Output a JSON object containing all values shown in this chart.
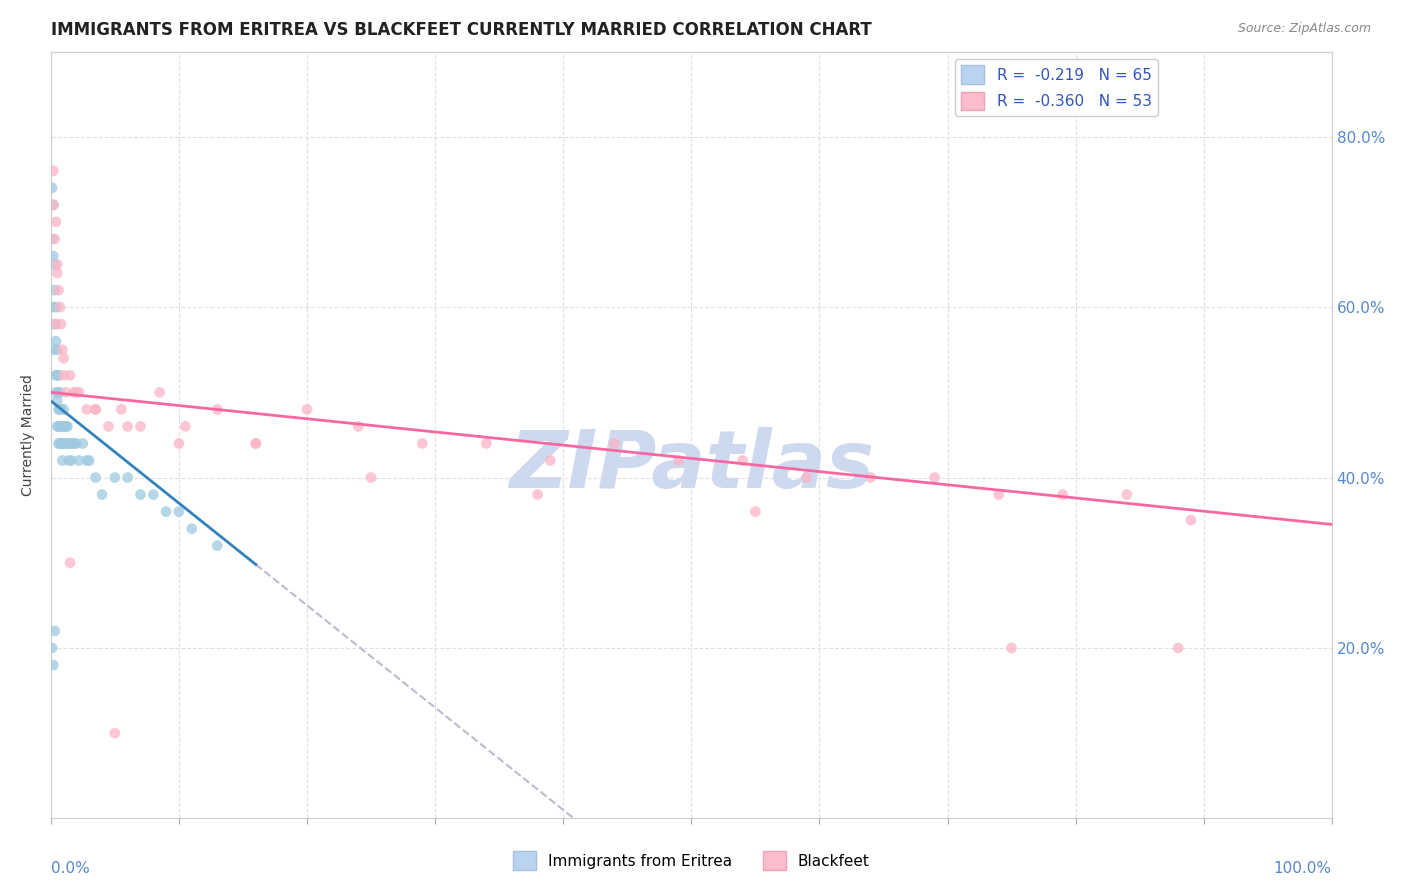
{
  "title": "IMMIGRANTS FROM ERITREA VS BLACKFEET CURRENTLY MARRIED CORRELATION CHART",
  "source": "Source: ZipAtlas.com",
  "ylabel": "Currently Married",
  "ylabel_right_ticks": [
    "20.0%",
    "40.0%",
    "60.0%",
    "80.0%"
  ],
  "ylabel_right_vals": [
    0.2,
    0.4,
    0.6,
    0.8
  ],
  "eritrea_x": [
    0.001,
    0.001,
    0.002,
    0.002,
    0.002,
    0.003,
    0.003,
    0.003,
    0.003,
    0.004,
    0.004,
    0.004,
    0.004,
    0.005,
    0.005,
    0.005,
    0.005,
    0.006,
    0.006,
    0.006,
    0.006,
    0.006,
    0.007,
    0.007,
    0.007,
    0.007,
    0.008,
    0.008,
    0.008,
    0.009,
    0.009,
    0.009,
    0.01,
    0.01,
    0.01,
    0.011,
    0.011,
    0.012,
    0.012,
    0.013,
    0.013,
    0.014,
    0.014,
    0.015,
    0.016,
    0.017,
    0.018,
    0.02,
    0.022,
    0.025,
    0.028,
    0.03,
    0.035,
    0.04,
    0.05,
    0.06,
    0.07,
    0.08,
    0.09,
    0.1,
    0.11,
    0.13,
    0.001,
    0.002,
    0.003
  ],
  "eritrea_y": [
    0.74,
    0.68,
    0.72,
    0.66,
    0.6,
    0.65,
    0.62,
    0.58,
    0.55,
    0.6,
    0.56,
    0.52,
    0.5,
    0.55,
    0.52,
    0.49,
    0.46,
    0.52,
    0.5,
    0.48,
    0.46,
    0.44,
    0.5,
    0.48,
    0.46,
    0.44,
    0.48,
    0.46,
    0.44,
    0.46,
    0.44,
    0.42,
    0.48,
    0.46,
    0.44,
    0.46,
    0.44,
    0.46,
    0.44,
    0.46,
    0.44,
    0.44,
    0.42,
    0.44,
    0.42,
    0.44,
    0.44,
    0.44,
    0.42,
    0.44,
    0.42,
    0.42,
    0.4,
    0.38,
    0.4,
    0.4,
    0.38,
    0.38,
    0.36,
    0.36,
    0.34,
    0.32,
    0.2,
    0.18,
    0.22
  ],
  "blackfeet_x": [
    0.002,
    0.003,
    0.004,
    0.005,
    0.006,
    0.007,
    0.008,
    0.009,
    0.01,
    0.012,
    0.015,
    0.018,
    0.022,
    0.028,
    0.035,
    0.045,
    0.055,
    0.07,
    0.085,
    0.105,
    0.13,
    0.16,
    0.2,
    0.24,
    0.29,
    0.34,
    0.39,
    0.44,
    0.49,
    0.54,
    0.59,
    0.64,
    0.69,
    0.74,
    0.79,
    0.84,
    0.89,
    0.002,
    0.005,
    0.01,
    0.02,
    0.035,
    0.06,
    0.1,
    0.16,
    0.25,
    0.38,
    0.55,
    0.75,
    0.88,
    0.004,
    0.015,
    0.05
  ],
  "blackfeet_y": [
    0.72,
    0.68,
    0.7,
    0.65,
    0.62,
    0.6,
    0.58,
    0.55,
    0.52,
    0.5,
    0.52,
    0.5,
    0.5,
    0.48,
    0.48,
    0.46,
    0.48,
    0.46,
    0.5,
    0.46,
    0.48,
    0.44,
    0.48,
    0.46,
    0.44,
    0.44,
    0.42,
    0.44,
    0.42,
    0.42,
    0.4,
    0.4,
    0.4,
    0.38,
    0.38,
    0.38,
    0.35,
    0.76,
    0.64,
    0.54,
    0.5,
    0.48,
    0.46,
    0.44,
    0.44,
    0.4,
    0.38,
    0.36,
    0.2,
    0.2,
    0.58,
    0.3,
    0.1
  ],
  "eritrea_color": "#9ecae1",
  "blackfeet_color": "#fbb4c6",
  "eritrea_line_color": "#3182bd",
  "blackfeet_line_color": "#f768a1",
  "dashed_line_color": "#bbbbcc",
  "background_color": "#ffffff",
  "watermark": "ZIPatlas",
  "watermark_color": "#ccd9ee",
  "xlim": [
    0.0,
    1.0
  ],
  "ylim": [
    0.0,
    0.9
  ],
  "title_fontsize": 12,
  "axis_fontsize": 10,
  "eritrea_regression": {
    "slope": -1.2,
    "intercept": 0.49
  },
  "blackfeet_regression": {
    "slope": -0.155,
    "intercept": 0.5
  },
  "eritrea_line_xrange": [
    0.001,
    0.16
  ],
  "dashed_line_xrange": [
    0.16,
    0.55
  ]
}
